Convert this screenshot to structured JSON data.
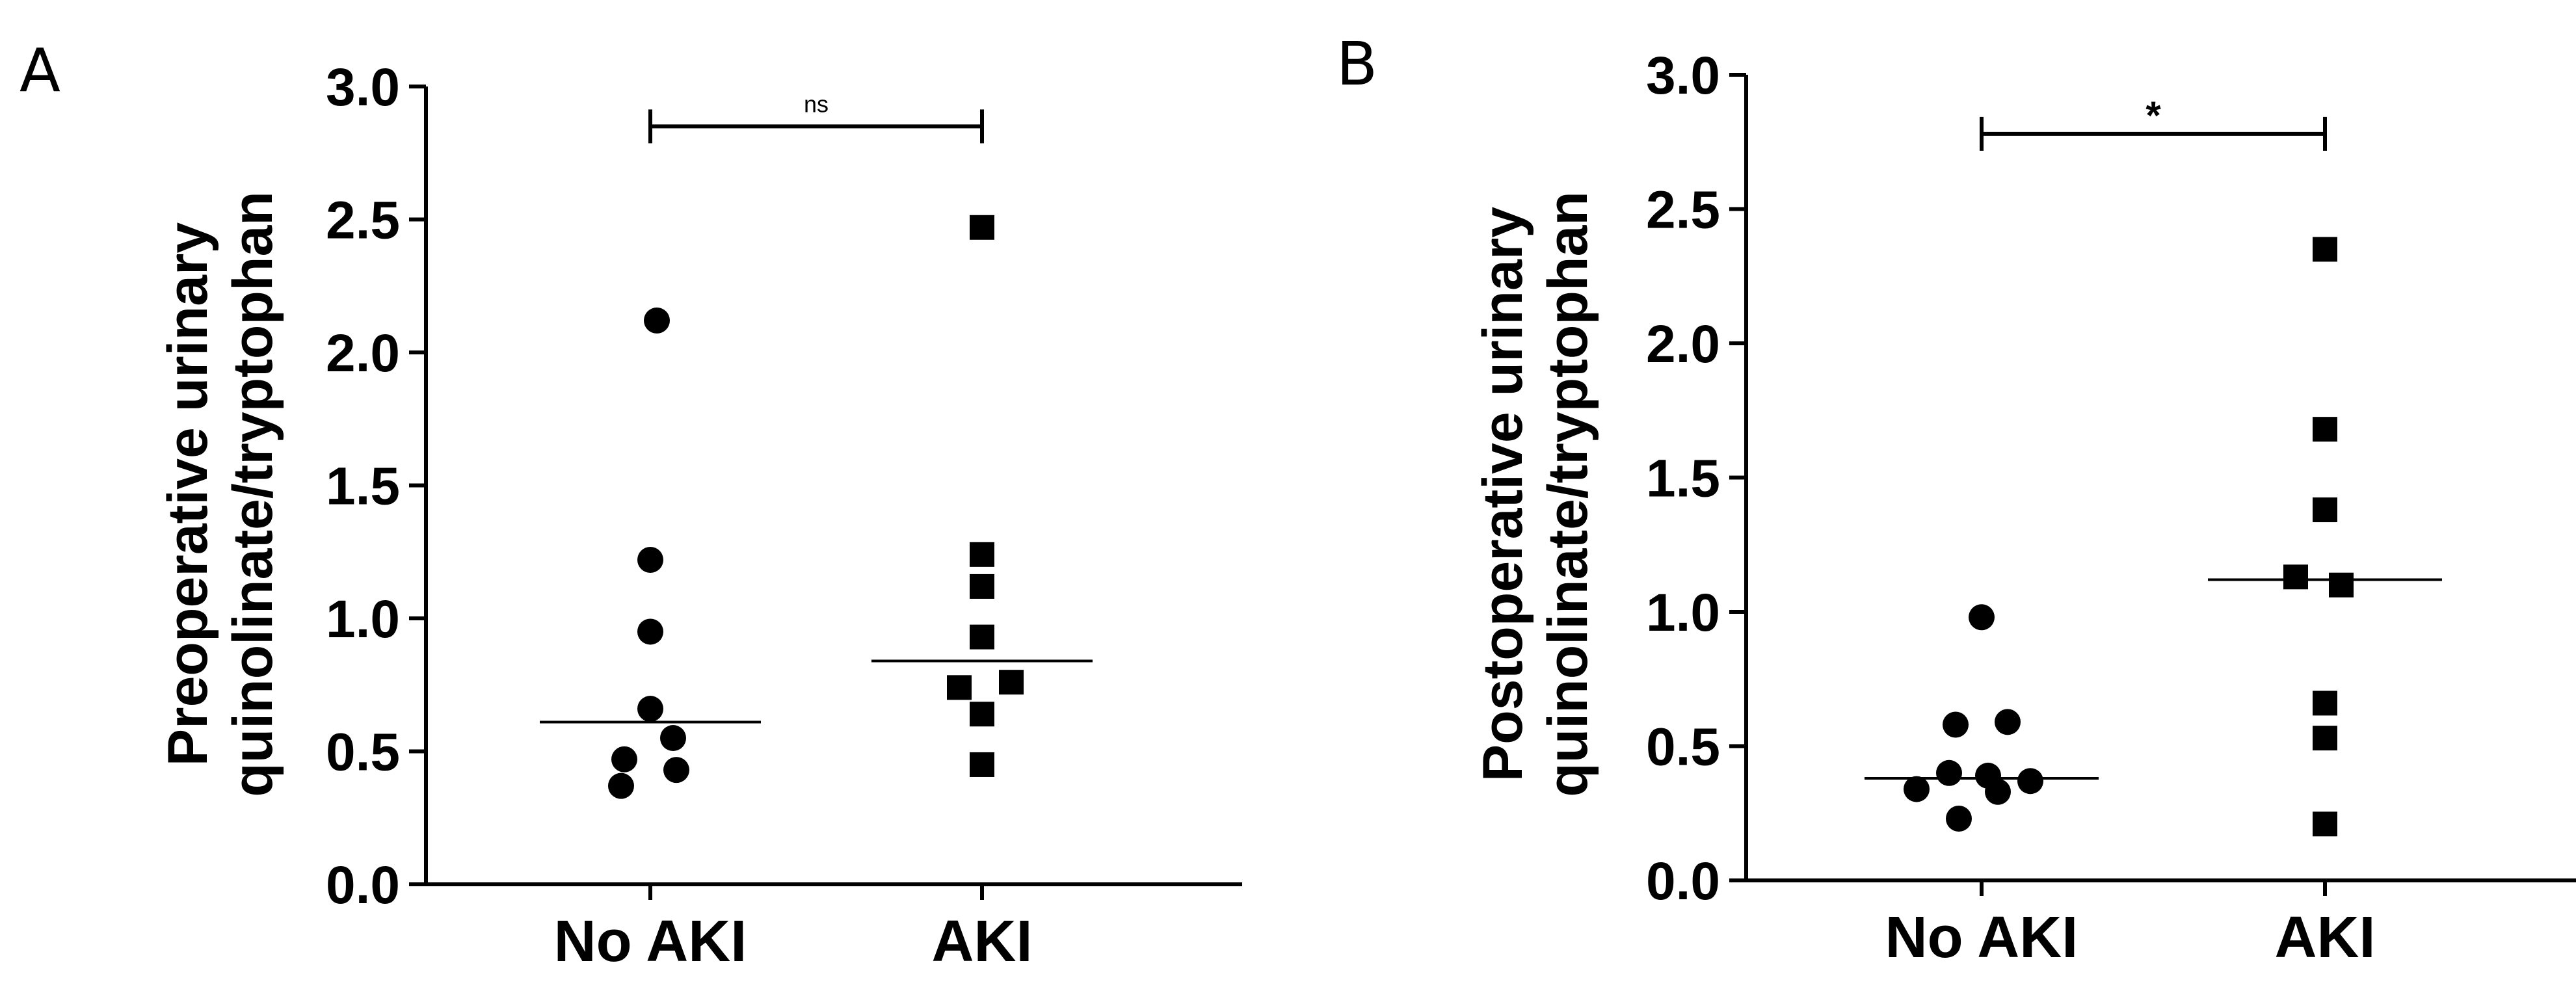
{
  "chart_data": [
    {
      "type": "scatter",
      "panel": "A",
      "ylabel": [
        "Preoperative urinary",
        "quinolinate/tryptophan"
      ],
      "xlabel": "",
      "ylim": [
        0,
        3
      ],
      "yticks": [
        0,
        0.5,
        1,
        1.5,
        2,
        2.5,
        3
      ],
      "ytick_labels": [
        "0.0",
        "0.5",
        "1.0",
        "1.5",
        "2.0",
        "2.5",
        "3.0"
      ],
      "categories": [
        "No AKI",
        "AKI"
      ],
      "series": [
        {
          "category": "No AKI",
          "marker": "circle",
          "points": [
            {
              "x": 0.02,
              "y": 2.12
            },
            {
              "x": 0.0,
              "y": 1.22
            },
            {
              "x": 0.0,
              "y": 0.95
            },
            {
              "x": 0.0,
              "y": 0.66
            },
            {
              "x": 0.07,
              "y": 0.55
            },
            {
              "x": -0.08,
              "y": 0.47
            },
            {
              "x": 0.08,
              "y": 0.43
            },
            {
              "x": -0.09,
              "y": 0.37
            }
          ],
          "median": 0.61
        },
        {
          "category": "AKI",
          "marker": "square",
          "points": [
            {
              "x": 0.0,
              "y": 2.47
            },
            {
              "x": 0.0,
              "y": 1.24
            },
            {
              "x": 0.0,
              "y": 1.12
            },
            {
              "x": 0.0,
              "y": 0.93
            },
            {
              "x": 0.09,
              "y": 0.76
            },
            {
              "x": -0.07,
              "y": 0.74
            },
            {
              "x": 0.0,
              "y": 0.64
            },
            {
              "x": 0.0,
              "y": 0.45
            }
          ],
          "median": 0.84
        }
      ],
      "significance": {
        "label": "ns",
        "y": 2.85
      }
    },
    {
      "type": "scatter",
      "panel": "B",
      "ylabel": [
        "Postoperative urinary",
        "quinolinate/tryptophan"
      ],
      "xlabel": "",
      "ylim": [
        0,
        3
      ],
      "yticks": [
        0,
        0.5,
        1,
        1.5,
        2,
        2.5,
        3
      ],
      "ytick_labels": [
        "0.0",
        "0.5",
        "1.0",
        "1.5",
        "2.0",
        "2.5",
        "3.0"
      ],
      "categories": [
        "No AKI",
        "AKI"
      ],
      "series": [
        {
          "category": "No AKI",
          "marker": "circle",
          "points": [
            {
              "x": 0.0,
              "y": 0.98
            },
            {
              "x": -0.08,
              "y": 0.58
            },
            {
              "x": 0.08,
              "y": 0.59
            },
            {
              "x": -0.1,
              "y": 0.4
            },
            {
              "x": 0.02,
              "y": 0.39
            },
            {
              "x": 0.15,
              "y": 0.37
            },
            {
              "x": -0.2,
              "y": 0.34
            },
            {
              "x": 0.05,
              "y": 0.33
            },
            {
              "x": -0.07,
              "y": 0.23
            }
          ],
          "median": 0.38
        },
        {
          "category": "AKI",
          "marker": "square",
          "points": [
            {
              "x": 0.0,
              "y": 2.35
            },
            {
              "x": 0.0,
              "y": 1.68
            },
            {
              "x": 0.0,
              "y": 1.38
            },
            {
              "x": -0.09,
              "y": 1.13
            },
            {
              "x": 0.05,
              "y": 1.1
            },
            {
              "x": 0.0,
              "y": 0.66
            },
            {
              "x": 0.0,
              "y": 0.53
            },
            {
              "x": 0.0,
              "y": 0.21
            }
          ],
          "median": 1.12
        }
      ],
      "significance": {
        "label": "*",
        "y": 2.78
      }
    }
  ],
  "colors": {
    "ink": "#000000",
    "background": "#ffffff"
  }
}
